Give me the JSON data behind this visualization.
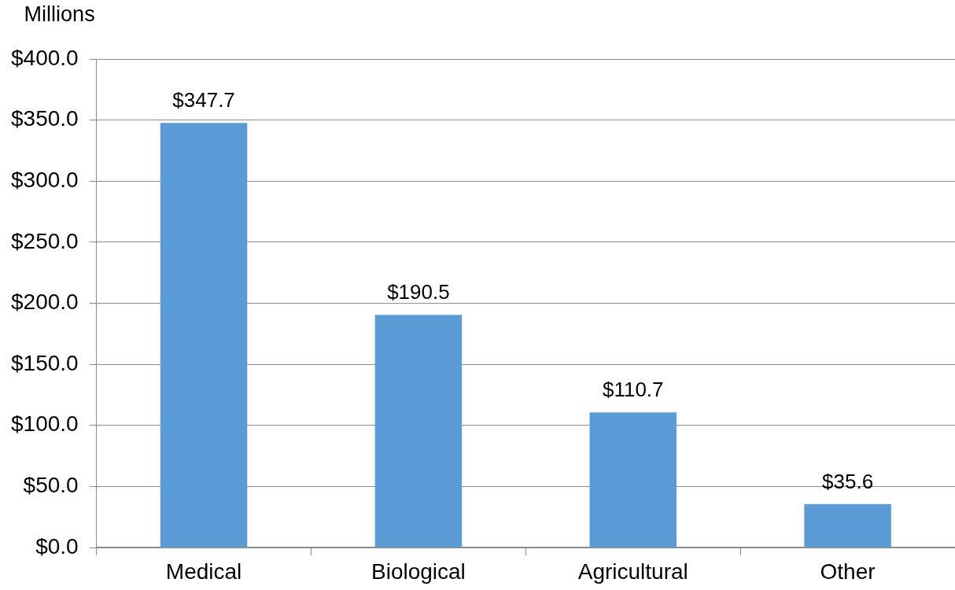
{
  "chart_data": {
    "type": "bar",
    "ylabel": "Millions",
    "categories": [
      "Medical",
      "Biological",
      "Agricultural",
      "Other"
    ],
    "values": [
      347.7,
      190.5,
      110.7,
      35.6
    ],
    "value_labels": [
      "$347.7",
      "$190.5",
      "$110.7",
      "$35.6"
    ],
    "color": "#5b9bd5",
    "ylim": [
      0,
      400
    ],
    "yticks": [
      {
        "value": 0,
        "label": "$0.0"
      },
      {
        "value": 50,
        "label": "$50.0"
      },
      {
        "value": 100,
        "label": "$100.0"
      },
      {
        "value": 150,
        "label": "$150.0"
      },
      {
        "value": 200,
        "label": "$200.0"
      },
      {
        "value": 250,
        "label": "$250.0"
      },
      {
        "value": 300,
        "label": "$300.0"
      },
      {
        "value": 350,
        "label": "$350.0"
      },
      {
        "value": 400,
        "label": "$400.0"
      }
    ],
    "grid": "y"
  }
}
